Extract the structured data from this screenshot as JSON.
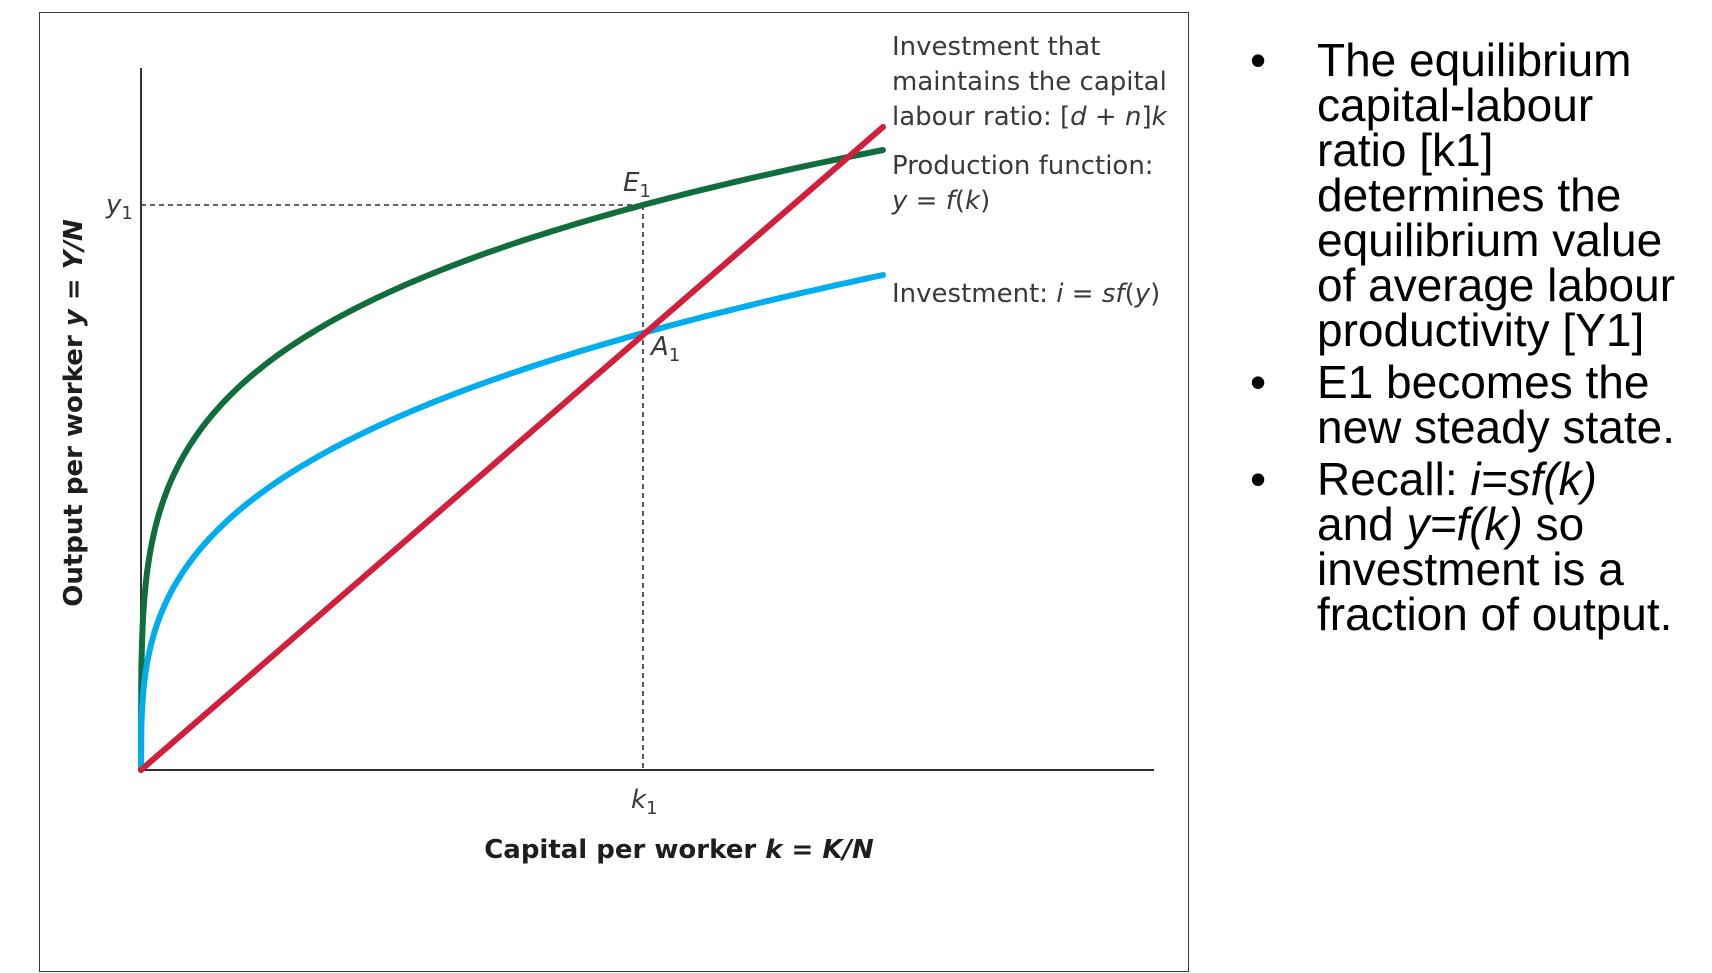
{
  "figure": {
    "axis_labels": {
      "y": {
        "prefix": "Output per worker ",
        "var": "y",
        "eq": " = ",
        "ratio": "Y/N"
      },
      "x": {
        "prefix": "Capital per worker ",
        "var": "k",
        "eq": " = ",
        "ratio": "K/N"
      }
    },
    "ticks": {
      "y1": {
        "base": "y",
        "sub": "1"
      },
      "k1": {
        "base": "k",
        "sub": "1"
      }
    },
    "points": {
      "E1": {
        "base": "E",
        "sub": "1"
      },
      "A1": {
        "base": "A",
        "sub": "1"
      }
    },
    "curves": {
      "investment_line": {
        "color": "#d21f3c",
        "label_lines": [
          "Investment that",
          "maintains the capital"
        ],
        "label_line3": {
          "text": "labour ratio: [",
          "d": "d",
          "mid": " + ",
          "n": "n",
          "end": "]",
          "k": "k"
        }
      },
      "production": {
        "color": "#0f6e3c",
        "label_line1": "Production function:",
        "label_line2": {
          "y": "y",
          "eq": " = ",
          "f": "f",
          "open": "(",
          "k": "k",
          "close": ")"
        }
      },
      "investment": {
        "color": "#00aeef",
        "label": {
          "text": "Investment: ",
          "i": "i",
          "eq": " = ",
          "sf": "sf",
          "open": "(",
          "y": "y",
          "close": ")"
        }
      }
    }
  },
  "bullets": [
    {
      "bullet": "•",
      "lines": [
        "The equilibrium",
        "capital-labour",
        "ratio [k1]",
        "determines the",
        "equilibrium value",
        "of average labour",
        "productivity [Y1]"
      ]
    },
    {
      "bullet": "•",
      "lines": [
        "E1 becomes the",
        "new steady state."
      ]
    },
    {
      "bullet": "•",
      "l1_text": "Recall: ",
      "l1_em": "i=sf(k)",
      "l2_text": "and ",
      "l2_em": "y=f(k)",
      "l2_after": " so",
      "l3": "investment is a",
      "l4": "fraction of output."
    }
  ]
}
